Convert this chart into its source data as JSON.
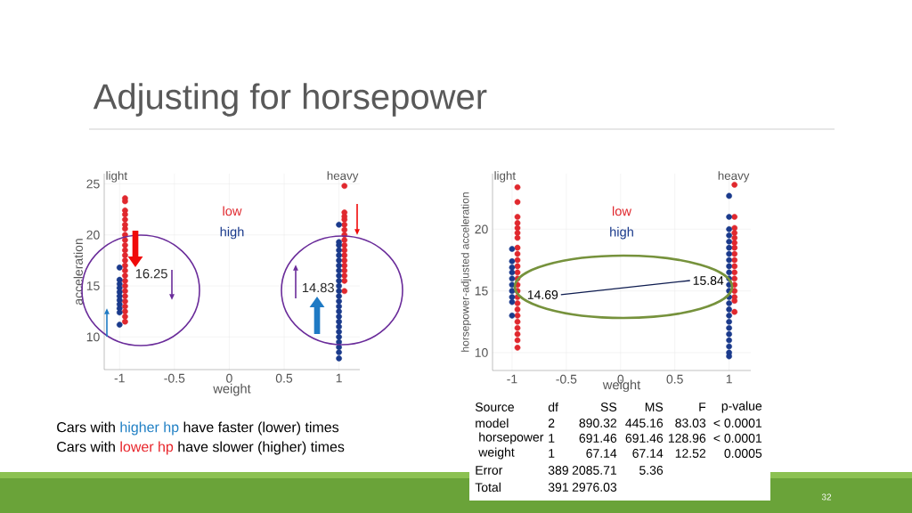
{
  "chart_data": [
    {
      "type": "scatter",
      "title": "Adjusting for horsepower",
      "xlabel": "weight",
      "ylabel": "acceleration",
      "xlim": [
        -1.14,
        1.19
      ],
      "ylim": [
        6.8,
        26
      ],
      "xticks": [
        -1,
        -0.5,
        0,
        0.5,
        1
      ],
      "yticks": [
        10,
        15,
        20,
        25
      ],
      "grid": true,
      "legend": "top",
      "series": [
        {
          "name": "low",
          "color": "#e0282e",
          "x": [
            -0.95,
            -0.95,
            -0.95,
            -0.95,
            -0.95,
            -0.95,
            -0.95,
            -0.95,
            -0.95,
            -0.95,
            -0.95,
            -0.95,
            -0.95,
            -0.95,
            -0.95,
            -0.95,
            -0.95,
            -0.95,
            -0.95,
            -0.95,
            -0.95,
            -0.95,
            -0.95,
            -0.95,
            -0.95,
            1.05,
            1.05,
            1.05,
            1.05,
            1.05,
            1.05,
            1.05,
            1.05,
            1.05,
            1.05,
            1.05,
            1.05,
            1.05,
            1.05,
            1.05,
            1.05,
            1.05
          ],
          "values": [
            11.5,
            12,
            12.5,
            13,
            13.5,
            14,
            14.5,
            15,
            15.5,
            16,
            16.5,
            17,
            17.5,
            18,
            18.5,
            19,
            19.5,
            20,
            20.6,
            21,
            21.5,
            22,
            22.4,
            23.3,
            23.6,
            14.5,
            15.5,
            16,
            16.5,
            17,
            17.5,
            18,
            18.5,
            19,
            19.5,
            20,
            20.5,
            21,
            21.5,
            21.8,
            22.2,
            24.8
          ]
        },
        {
          "name": "high",
          "color": "#1a3a8c",
          "x": [
            -1,
            -1,
            -1,
            -1,
            -1,
            -1,
            -1,
            -1,
            -1,
            -1,
            -1,
            1,
            1,
            1,
            1,
            1,
            1,
            1,
            1,
            1,
            1,
            1,
            1,
            1,
            1,
            1,
            1,
            1,
            1,
            1,
            1,
            1,
            1,
            1,
            1,
            1
          ],
          "values": [
            11.2,
            12.4,
            12.8,
            13.2,
            13.6,
            14,
            14.4,
            14.8,
            15.2,
            15.6,
            16.8,
            7.9,
            8.5,
            9,
            9.5,
            10,
            10.5,
            11,
            11.5,
            12,
            12.5,
            13,
            13.5,
            14,
            14.5,
            15,
            15.5,
            16,
            16.5,
            17,
            17.5,
            18,
            18.5,
            19,
            19.3,
            21
          ]
        }
      ],
      "annotations": [
        "light",
        "heavy",
        "16.25",
        "14.83"
      ]
    },
    {
      "type": "scatter",
      "xlabel": "weight",
      "ylabel": "horsepower-adjusted acceleration",
      "xlim": [
        -1.18,
        1.2
      ],
      "ylim": [
        8.55,
        24.5
      ],
      "xticks": [
        -1,
        -0.5,
        0,
        0.5,
        1
      ],
      "yticks": [
        10,
        15,
        20
      ],
      "grid": true,
      "legend": "top",
      "series": [
        {
          "name": "low",
          "color": "#e0282e",
          "x": [
            -0.95,
            -0.95,
            -0.95,
            -0.95,
            -0.95,
            -0.95,
            -0.95,
            -0.95,
            -0.95,
            -0.95,
            -0.95,
            -0.95,
            -0.95,
            -0.95,
            -0.95,
            -0.95,
            -0.95,
            -0.95,
            -0.95,
            -0.95,
            -0.95,
            -0.95,
            -0.95,
            -0.95,
            1.05,
            1.05,
            1.05,
            1.05,
            1.05,
            1.05,
            1.05,
            1.05,
            1.05,
            1.05,
            1.05,
            1.05,
            1.05,
            1.05,
            1.05,
            1.05,
            1.05
          ],
          "values": [
            10.4,
            11,
            11.5,
            12,
            12.5,
            13,
            13.5,
            14,
            14.5,
            15,
            15.5,
            16,
            16.5,
            17,
            17.5,
            18,
            18.5,
            19.3,
            19.7,
            20.1,
            20.5,
            21,
            22.2,
            23.4,
            13.3,
            14.2,
            14.5,
            15,
            15.5,
            16,
            16.5,
            17,
            17.5,
            18,
            18.5,
            18.9,
            19.3,
            19.7,
            20.1,
            21,
            23.6
          ]
        },
        {
          "name": "high",
          "color": "#1a3a8c",
          "x": [
            -1,
            -1,
            -1,
            -1,
            -1,
            -1,
            -1,
            -1,
            -1,
            -1,
            1,
            1,
            1,
            1,
            1,
            1,
            1,
            1,
            1,
            1,
            1,
            1,
            1,
            1,
            1,
            1,
            1,
            1,
            1,
            1,
            1,
            1,
            1,
            1
          ],
          "values": [
            13,
            14.1,
            14.5,
            15,
            15.5,
            16,
            16.5,
            16.9,
            17.4,
            18.4,
            9.7,
            10,
            10.5,
            11,
            11.5,
            12,
            12.5,
            13,
            13.5,
            14,
            14.5,
            15,
            15.5,
            16,
            16.5,
            17,
            17.5,
            18,
            18.5,
            19,
            19.5,
            20,
            21,
            22.7
          ]
        },
        {
          "type": "line",
          "color": "#0d1b4f",
          "x": [
            -0.55,
            0.64
          ],
          "values": [
            14.69,
            15.84
          ],
          "value_labels": [
            "14.69",
            "15.84"
          ]
        }
      ],
      "annotations": [
        "light",
        "heavy"
      ]
    },
    {
      "type": "other",
      "annotations": [
        "Source",
        "df",
        "SS",
        "MS",
        "F",
        "p-value",
        "model",
        "2",
        "890.32",
        "445.16",
        "83.03",
        "< 0.0001",
        "horsepower",
        "1",
        "691.46",
        "691.46",
        "128.96",
        "< 0.0001",
        "weight",
        "1",
        "67.14",
        "67.14",
        "12.52",
        "0.0005",
        "Error",
        "389",
        "2085.71",
        "5.36",
        null,
        null,
        "Total",
        "391",
        "2976.03",
        null,
        null,
        null
      ]
    },
    {
      "type": "other",
      "annotations": [
        "Cars with",
        "higher hp",
        "have faster (lower) times",
        "Cars with",
        "lower hp",
        "have slower (higher) times",
        "32"
      ]
    }
  ]
}
